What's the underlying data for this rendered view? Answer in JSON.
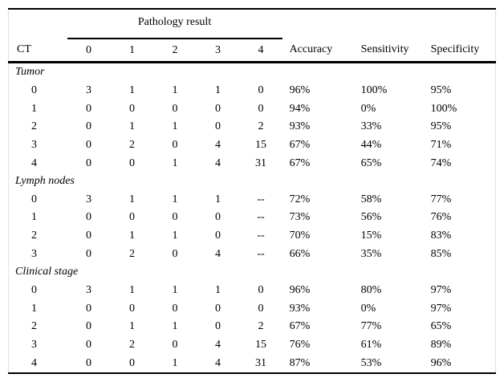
{
  "table": {
    "spanner_label": "Pathology result",
    "columns": [
      "CT",
      "0",
      "1",
      "2",
      "3",
      "4",
      "Accuracy",
      "Sensitivity",
      "Specificity"
    ],
    "sections": [
      {
        "label": "Tumor",
        "rows": [
          [
            "0",
            "3",
            "1",
            "1",
            "1",
            "0",
            "96%",
            "100%",
            "95%"
          ],
          [
            "1",
            "0",
            "0",
            "0",
            "0",
            "0",
            "94%",
            "0%",
            "100%"
          ],
          [
            "2",
            "0",
            "1",
            "1",
            "0",
            "2",
            "93%",
            "33%",
            "95%"
          ],
          [
            "3",
            "0",
            "2",
            "0",
            "4",
            "15",
            "67%",
            "44%",
            "71%"
          ],
          [
            "4",
            "0",
            "0",
            "1",
            "4",
            "31",
            "67%",
            "65%",
            "74%"
          ]
        ]
      },
      {
        "label": "Lymph nodes",
        "rows": [
          [
            "0",
            "3",
            "1",
            "1",
            "1",
            "--",
            "72%",
            "58%",
            "77%"
          ],
          [
            "1",
            "0",
            "0",
            "0",
            "0",
            "--",
            "73%",
            "56%",
            "76%"
          ],
          [
            "2",
            "0",
            "1",
            "1",
            "0",
            "--",
            "70%",
            "15%",
            "83%"
          ],
          [
            "3",
            "0",
            "2",
            "0",
            "4",
            "--",
            "66%",
            "35%",
            "85%"
          ]
        ]
      },
      {
        "label": "Clinical stage",
        "rows": [
          [
            "0",
            "3",
            "1",
            "1",
            "1",
            "0",
            "96%",
            "80%",
            "97%"
          ],
          [
            "1",
            "0",
            "0",
            "0",
            "0",
            "0",
            "93%",
            "0%",
            "97%"
          ],
          [
            "2",
            "0",
            "1",
            "1",
            "0",
            "2",
            "67%",
            "77%",
            "65%"
          ],
          [
            "3",
            "0",
            "2",
            "0",
            "4",
            "15",
            "76%",
            "61%",
            "89%"
          ],
          [
            "4",
            "0",
            "0",
            "1",
            "4",
            "31",
            "87%",
            "53%",
            "96%"
          ]
        ]
      }
    ],
    "colors": {
      "rule": "#000000",
      "text": "#000000",
      "background": "#ffffff",
      "edge_border": "#e3e3e3"
    }
  }
}
